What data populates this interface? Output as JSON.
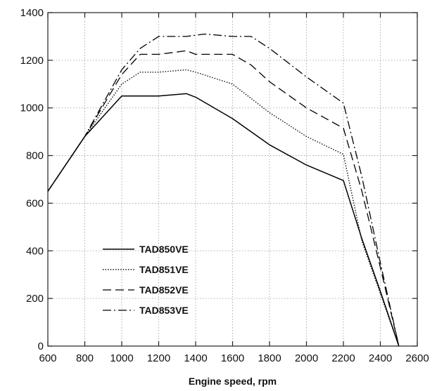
{
  "chart_data": {
    "type": "line",
    "title": "",
    "xlabel": "Engine speed, rpm",
    "ylabel": "",
    "xlim": [
      600,
      2600
    ],
    "ylim": [
      0,
      1400
    ],
    "xticks": [
      600,
      800,
      1000,
      1200,
      1400,
      1600,
      1800,
      2000,
      2200,
      2400,
      2600
    ],
    "yticks": [
      0,
      200,
      400,
      600,
      800,
      1000,
      1200,
      1400
    ],
    "grid": true,
    "legend_position": "bottom-left",
    "series": [
      {
        "name": "TAD850VE",
        "style": "solid",
        "color": "#000000",
        "points": [
          [
            600,
            650
          ],
          [
            800,
            880
          ],
          [
            1000,
            1050
          ],
          [
            1200,
            1050
          ],
          [
            1350,
            1060
          ],
          [
            1400,
            1045
          ],
          [
            1600,
            955
          ],
          [
            1800,
            845
          ],
          [
            2000,
            760
          ],
          [
            2200,
            695
          ],
          [
            2300,
            450
          ],
          [
            2400,
            230
          ],
          [
            2500,
            0
          ]
        ]
      },
      {
        "name": "TAD851VE",
        "style": "dotted",
        "color": "#000000",
        "points": [
          [
            600,
            650
          ],
          [
            800,
            880
          ],
          [
            1000,
            1100
          ],
          [
            1100,
            1150
          ],
          [
            1200,
            1150
          ],
          [
            1350,
            1160
          ],
          [
            1400,
            1150
          ],
          [
            1600,
            1100
          ],
          [
            1800,
            980
          ],
          [
            2000,
            880
          ],
          [
            2200,
            805
          ],
          [
            2300,
            440
          ],
          [
            2400,
            220
          ],
          [
            2500,
            0
          ]
        ]
      },
      {
        "name": "TAD852VE",
        "style": "dashed",
        "color": "#000000",
        "points": [
          [
            600,
            650
          ],
          [
            800,
            880
          ],
          [
            1000,
            1140
          ],
          [
            1100,
            1225
          ],
          [
            1200,
            1225
          ],
          [
            1350,
            1240
          ],
          [
            1400,
            1225
          ],
          [
            1600,
            1225
          ],
          [
            1700,
            1180
          ],
          [
            1800,
            1110
          ],
          [
            2000,
            1000
          ],
          [
            2200,
            915
          ],
          [
            2300,
            650
          ],
          [
            2400,
            330
          ],
          [
            2500,
            0
          ]
        ]
      },
      {
        "name": "TAD853VE",
        "style": "dashdot",
        "color": "#000000",
        "points": [
          [
            600,
            650
          ],
          [
            800,
            880
          ],
          [
            1000,
            1160
          ],
          [
            1100,
            1250
          ],
          [
            1200,
            1300
          ],
          [
            1350,
            1300
          ],
          [
            1450,
            1310
          ],
          [
            1600,
            1300
          ],
          [
            1700,
            1300
          ],
          [
            1800,
            1250
          ],
          [
            2000,
            1130
          ],
          [
            2200,
            1020
          ],
          [
            2300,
            710
          ],
          [
            2400,
            350
          ],
          [
            2500,
            0
          ]
        ]
      }
    ]
  }
}
